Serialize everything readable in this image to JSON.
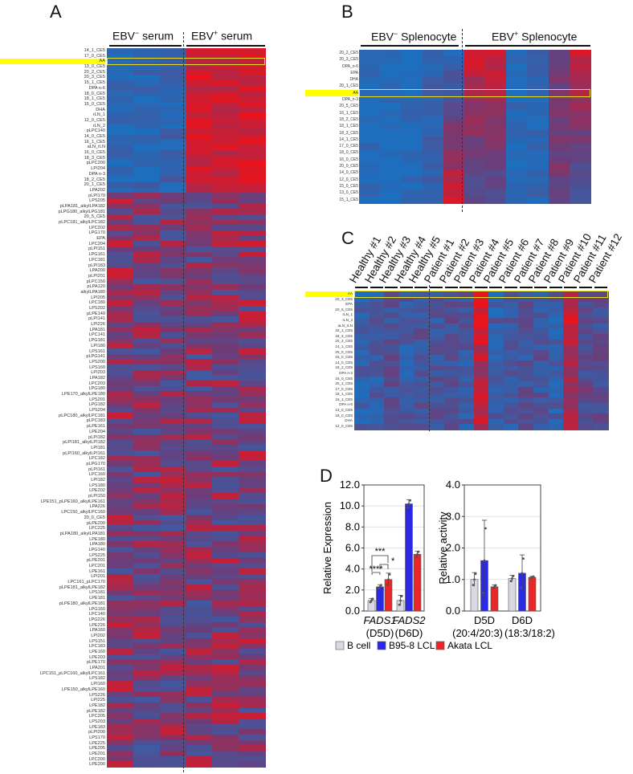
{
  "panel_labels": {
    "a": "A",
    "b": "B",
    "c": "C",
    "d": "D"
  },
  "colors": {
    "low": "#1e6ebe",
    "mid": "#6e3c78",
    "high": "#e8141e",
    "highlight": "#ffff00",
    "bcell": "#d9d9e3",
    "b958": "#2a2ae6",
    "akata": "#e82828"
  },
  "chart_data": [
    {
      "type": "heatmap",
      "panel": "A",
      "group_headers": {
        "neg_prefix": "EBV",
        "neg_sup": "−",
        "neg_suffix": " serum",
        "pos_prefix": "EBV",
        "pos_sup": "+",
        "pos_suffix": " serum"
      },
      "columns_per_group": [
        3,
        3
      ],
      "highlight_row": "AA",
      "seed": 11,
      "rows": [
        "14_1_CE5",
        "17_0_CE5",
        "AA",
        "13_0_CE5",
        "20_2_CE5",
        "20_3_CE5",
        "15_1_CE5",
        "DPA n-6",
        "18_0_CE5",
        "18_1_CE5",
        "15_0_CE5",
        "DHA",
        "rLN_1",
        "12_0_CE5",
        "rLN_2",
        "pLPC140",
        "14_0_CE5",
        "16_1_CE5",
        "aLN_rLN",
        "16_0_CE5",
        "18_3_CE5",
        "pLPC200",
        "LPI204",
        "DPA n-3",
        "18_2_CE5",
        "20_1_CE5",
        "LPA202",
        "pLPI170",
        "LPS205",
        "pLPA181_alkylLPA182",
        "pLPG180_alkylLPG181",
        "20_5_CE5",
        "pLPC181_alkylLPC182",
        "LPC202",
        "LPG170",
        "EPA",
        "LPC204",
        "pLPI151",
        "LPG161",
        "LPC181",
        "pLPI183",
        "LPA200",
        "pLPI201",
        "pLPC150",
        "pLPA120",
        "alkylLPA180",
        "LPI205",
        "LPC180",
        "LPS202",
        "pLPE140",
        "pLPI141",
        "LPI226",
        "LPA181",
        "LPC141",
        "LPG181",
        "LPI180",
        "LPS161",
        "pLPG141",
        "LPS200",
        "LPS160",
        "LPI203",
        "LPA182",
        "LPC203",
        "LPG180",
        "LPE170_alkylLPE180",
        "LPS201",
        "LPG182",
        "LPS204",
        "pLPC180_alkylLPC181",
        "pLPC183",
        "pLPE161",
        "LPE204",
        "pLPI182",
        "pLPI181_alkylLPI182",
        "LPI181",
        "pLPI160_alkylLPI161",
        "LPC182",
        "pLPG170",
        "pLPI161",
        "LPC160",
        "LPI182",
        "LPS180",
        "LPE202",
        "pLPI150",
        "LPE151_pLPE160_alkylLPE161",
        "LPA226",
        "LPC150_alkylLPC160",
        "20_0_CE5",
        "pLPE200",
        "LPC225",
        "pLPA180_alkylLPA181",
        "LPE180",
        "LPA180",
        "LPG140",
        "LPS225",
        "pLPE201",
        "LPC201",
        "LPE161",
        "LPI201",
        "LPC161_pLPC170",
        "pLPE181_alkylLPE182",
        "LPS181",
        "LPE181",
        "pLPE180_alkylLPE181",
        "LPG160",
        "LPC140",
        "LPG226",
        "LPE226",
        "LPA160",
        "LPI202",
        "LPS151",
        "LPC183",
        "LPE160",
        "LPE203",
        "pLPE170",
        "LPA201",
        "LPC151_pLPC160_alkylLPC161",
        "LPS182",
        "LPI160",
        "LPE150_alkylLPE160",
        "LPS226",
        "LPI225",
        "LPE182",
        "pLPE182",
        "LPC205",
        "LPS203",
        "LPE183",
        "pLPI200",
        "LPS170",
        "LPE225",
        "LPE205",
        "LPE201",
        "LPC200",
        "LPE200"
      ],
      "column_means_top_rows": [
        -0.85,
        -0.8,
        -0.75,
        0.75,
        0.7,
        0.8
      ],
      "column_means_other_rows": [
        0.15,
        0.05,
        0.1,
        0.05,
        0.1,
        0.15
      ],
      "z_range": [
        -1,
        1
      ]
    },
    {
      "type": "heatmap",
      "panel": "B",
      "group_headers": {
        "neg_prefix": "EBV",
        "neg_sup": "−",
        "neg_suffix": " Splenocyte",
        "pos_prefix": "EBV",
        "pos_sup": "+",
        "pos_suffix": " Splenocyte"
      },
      "columns_per_group": [
        5,
        6
      ],
      "highlight_row": "AA",
      "seed": 5,
      "rows": [
        "20_2_CE5",
        "20_3_CE5",
        "DPA_n-6",
        "EPA",
        "DHA",
        "20_1_CE5",
        "AA",
        "DPA_n-3",
        "20_5_CE5",
        "16_1_CE5",
        "18_2_CE5",
        "18_1_CE5",
        "18_3_CE5",
        "14_1_CE5",
        "17_0_CE5",
        "18_0_CE5",
        "16_0_CE5",
        "20_0_CE5",
        "14_0_CE5",
        "12_0_CE5",
        "15_0_CE5",
        "13_0_CE5",
        "15_1_CE5"
      ],
      "column_means": [
        -0.95,
        -0.95,
        -0.9,
        -0.75,
        -0.5,
        0.6,
        0.65,
        -0.9,
        -0.8,
        0.0,
        0.65
      ],
      "z_range": [
        -1,
        1
      ]
    },
    {
      "type": "heatmap",
      "panel": "C",
      "columns": [
        "Healthy #1",
        "Healthy #2",
        "Healthy #3",
        "Healthy #4",
        "Healthy #5",
        "Patient #1",
        "Patient #2",
        "Patient #3",
        "Patient #4",
        "Patient #5",
        "Patient #6",
        "Patient #7",
        "Patient #8",
        "Patient #9",
        "Patient #10",
        "Patient #11",
        "Patient #12"
      ],
      "highlight_row": "AA",
      "seed": 23,
      "rows": [
        "AA",
        "20_3_CE5",
        "EPA",
        "20_5_CE5",
        "rLN_1",
        "rLN_2",
        "aLN_rLN",
        "16_1_CE5",
        "18_3_CE5",
        "20_2_CE5",
        "14_1_CE5",
        "20_0_CE5",
        "15_0_CE5",
        "14_0_CE5",
        "18_2_CE5",
        "DPA n-3",
        "16_0_CE5",
        "20_1_CE5",
        "17_0_CE5",
        "18_1_CE5",
        "15_1_CE5",
        "DPA n-6",
        "13_0_CE5",
        "18_0_CE5",
        "DHA",
        "12_0_CE5"
      ],
      "column_means": [
        -0.7,
        -0.65,
        -0.35,
        -0.6,
        -0.45,
        -0.5,
        -0.45,
        -0.55,
        0.55,
        -0.65,
        -0.55,
        -0.45,
        -0.5,
        -0.65,
        0.3,
        -0.25,
        -0.35
      ],
      "z_range": [
        -1,
        1
      ]
    },
    {
      "type": "bar",
      "panel": "D-left",
      "ylabel": "Relative Expression",
      "ylim": [
        0,
        12
      ],
      "yticks": [
        "0.0",
        "2.0",
        "4.0",
        "6.0",
        "8.0",
        "10.0",
        "12.0"
      ],
      "categories": [
        {
          "gene": "FADS1",
          "enzyme": "(D5D)"
        },
        {
          "gene": "FADS2",
          "enzyme": "(D6D)"
        }
      ],
      "series": [
        {
          "name": "B cell",
          "values": [
            1.0,
            1.0
          ],
          "errors": [
            0.2,
            0.5
          ]
        },
        {
          "name": "B95-8 LCL",
          "values": [
            2.3,
            10.2
          ],
          "errors": [
            0.2,
            0.4
          ]
        },
        {
          "name": "Akata LCL",
          "values": [
            3.0,
            5.4
          ],
          "errors": [
            0.6,
            0.3
          ]
        }
      ],
      "significance": [
        {
          "pair": "B cell vs Akata LCL (FADS1)",
          "label": "***"
        },
        {
          "pair": "B cell vs B95-8 LCL (FADS1)",
          "label": "****"
        },
        {
          "pair": "B95-8 LCL vs Akata LCL (FADS1)",
          "label": "*"
        }
      ]
    },
    {
      "type": "bar",
      "panel": "D-right",
      "ylabel": "Relative activity",
      "ylim": [
        0,
        4
      ],
      "yticks": [
        "0.0",
        "1.0",
        "2.0",
        "3.0",
        "4.0"
      ],
      "categories": [
        {
          "gene": "D5D",
          "enzyme": "(20:4/20:3)"
        },
        {
          "gene": "D6D",
          "enzyme": "(18:3/18:2)"
        }
      ],
      "series": [
        {
          "name": "B cell",
          "values": [
            1.0,
            1.03
          ],
          "errors": [
            0.22,
            0.1
          ]
        },
        {
          "name": "B95-8 LCL",
          "values": [
            1.6,
            1.2
          ],
          "errors": [
            1.28,
            0.58
          ]
        },
        {
          "name": "Akata LCL",
          "values": [
            0.77,
            1.07
          ],
          "errors": [
            0.06,
            0.03
          ]
        }
      ]
    }
  ],
  "legend": [
    "B cell",
    "B95-8 LCL",
    "Akata LCL"
  ]
}
